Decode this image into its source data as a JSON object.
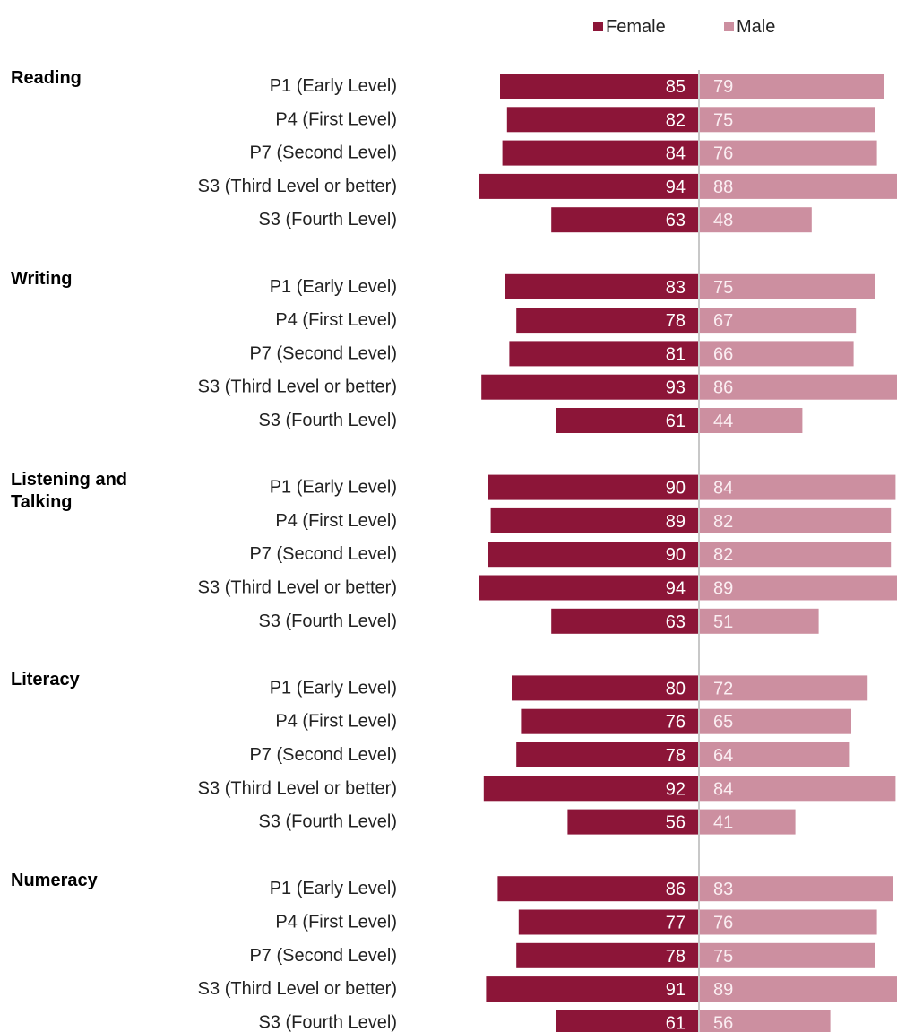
{
  "chart_data": {
    "type": "bar",
    "legend": "top",
    "series": [
      {
        "name": "Female",
        "color": "#8c1538",
        "values": [
          [
            85,
            82,
            84,
            94,
            63
          ],
          [
            83,
            78,
            81,
            93,
            61
          ],
          [
            90,
            89,
            90,
            94,
            63
          ],
          [
            80,
            76,
            78,
            92,
            56
          ],
          [
            86,
            77,
            78,
            91,
            61
          ]
        ]
      },
      {
        "name": "Male",
        "color": "#cc8fa0",
        "values": [
          [
            79,
            75,
            76,
            88,
            48
          ],
          [
            75,
            67,
            66,
            86,
            44
          ],
          [
            84,
            82,
            82,
            89,
            51
          ],
          [
            72,
            65,
            64,
            84,
            41
          ],
          [
            83,
            76,
            75,
            89,
            56
          ]
        ]
      }
    ],
    "groups": [
      {
        "name": "Reading",
        "categories": [
          "P1 (Early Level)",
          "P4 (First Level)",
          "P7 (Second Level)",
          "S3 (Third Level or better)",
          "S3 (Fourth Level)"
        ]
      },
      {
        "name": "Writing",
        "categories": [
          "P1 (Early Level)",
          "P4 (First Level)",
          "P7 (Second Level)",
          "S3 (Third Level or better)",
          "S3 (Fourth Level)"
        ]
      },
      {
        "name": "Listening and Talking",
        "categories": [
          "P1 (Early Level)",
          "P4 (First Level)",
          "P7 (Second Level)",
          "S3 (Third Level or better)",
          "S3 (Fourth Level)"
        ]
      },
      {
        "name": "Literacy",
        "categories": [
          "P1 (Early Level)",
          "P4 (First Level)",
          "P7 (Second Level)",
          "S3 (Third Level or better)",
          "S3 (Fourth Level)"
        ]
      },
      {
        "name": "Numeracy",
        "categories": [
          "P1 (Early Level)",
          "P4 (First Level)",
          "P7 (Second Level)",
          "S3 (Third Level or better)",
          "S3 (Fourth Level)"
        ]
      }
    ]
  }
}
